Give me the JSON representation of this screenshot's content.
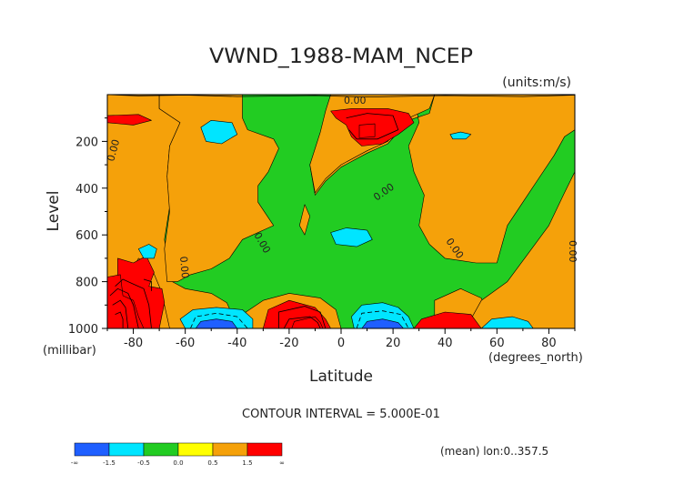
{
  "chart_data": {
    "type": "heatmap",
    "title": "VWND_1988-MAM_NCEP",
    "units": "(units:m/s)",
    "xlabel": "Latitude",
    "ylabel": "Level",
    "x_unit": "(degrees_north)",
    "y_unit": "(millibar)",
    "xlim": [
      -90,
      90
    ],
    "ylim": [
      1000,
      0
    ],
    "x_ticks": [
      -80,
      -60,
      -40,
      -20,
      0,
      20,
      40,
      60,
      80
    ],
    "x_tick_labels": [
      "-80",
      "-60",
      "-40",
      "-20",
      "0",
      "20",
      "40",
      "60",
      "80"
    ],
    "y_ticks": [
      200,
      400,
      600,
      800,
      1000
    ],
    "y_tick_labels": [
      "200",
      "400",
      "600",
      "800",
      "1000"
    ],
    "contour_interval_text": "CONTOUR INTERVAL = 5.000E-01",
    "footnote": "(mean) lon:0..357.5",
    "contour_labels": [
      "0.00",
      "0.00",
      "0.00",
      "0.00",
      "0.00",
      "0.00",
      "0.00"
    ],
    "colorbar": {
      "colors": [
        "#1f5fff",
        "#00e5ff",
        "#22cc22",
        "#ffff00",
        "#f5a10a",
        "#ff0000"
      ],
      "labels": [
        "-∞",
        "-1.5",
        "-0.5",
        "0.0",
        "0.5",
        "1.5",
        "∞"
      ]
    },
    "background_color": "#22cc22",
    "regions": [
      {
        "level": 0.5,
        "pts": [
          [
            -90,
            0
          ],
          [
            -70,
            0
          ],
          [
            -70,
            60
          ],
          [
            -62,
            120
          ],
          [
            -66,
            220
          ],
          [
            -67,
            350
          ],
          [
            -66,
            480
          ],
          [
            -68,
            620
          ],
          [
            -65,
            800
          ],
          [
            -60,
            830
          ],
          [
            -50,
            850
          ],
          [
            -44,
            890
          ],
          [
            -42,
            940
          ],
          [
            -40,
            1000
          ],
          [
            -90,
            1000
          ]
        ]
      },
      {
        "level": 0.5,
        "pts": [
          [
            -70,
            0
          ],
          [
            -38,
            0
          ],
          [
            -38,
            100
          ],
          [
            -36,
            150
          ],
          [
            -26,
            190
          ],
          [
            -24,
            230
          ],
          [
            -28,
            330
          ],
          [
            -32,
            390
          ],
          [
            -32,
            460
          ],
          [
            -26,
            560
          ],
          [
            -38,
            620
          ],
          [
            -43,
            700
          ],
          [
            -50,
            745
          ],
          [
            -58,
            770
          ],
          [
            -63,
            800
          ],
          [
            -67,
            800
          ],
          [
            -68,
            660
          ],
          [
            -66,
            500
          ],
          [
            -67,
            350
          ],
          [
            -66,
            220
          ],
          [
            -62,
            120
          ],
          [
            -70,
            60
          ]
        ]
      },
      {
        "level": 0.5,
        "pts": [
          [
            -16,
            560
          ],
          [
            -14,
            470
          ],
          [
            -12,
            520
          ],
          [
            -14,
            600
          ]
        ]
      },
      {
        "level": 0.5,
        "pts": [
          [
            -4,
            0
          ],
          [
            28,
            0
          ],
          [
            30,
            120
          ],
          [
            26,
            220
          ],
          [
            28,
            330
          ],
          [
            32,
            430
          ],
          [
            30,
            560
          ],
          [
            34,
            640
          ],
          [
            40,
            700
          ],
          [
            52,
            720
          ],
          [
            60,
            720
          ],
          [
            64,
            560
          ],
          [
            70,
            460
          ],
          [
            76,
            360
          ],
          [
            82,
            260
          ],
          [
            86,
            180
          ],
          [
            90,
            150
          ],
          [
            90,
            0
          ],
          [
            36,
            0
          ],
          [
            34,
            80
          ],
          [
            26,
            110
          ],
          [
            18,
            210
          ],
          [
            10,
            250
          ],
          [
            0,
            310
          ],
          [
            -6,
            370
          ],
          [
            -10,
            430
          ],
          [
            -12,
            300
          ],
          [
            -8,
            180
          ],
          [
            -6,
            80
          ]
        ]
      },
      {
        "level": 0.5,
        "pts": [
          [
            -4,
            0
          ],
          [
            36,
            0
          ],
          [
            34,
            60
          ],
          [
            24,
            110
          ],
          [
            18,
            200
          ],
          [
            10,
            240
          ],
          [
            0,
            300
          ],
          [
            -6,
            360
          ],
          [
            -10,
            420
          ],
          [
            -12,
            300
          ],
          [
            -8,
            160
          ],
          [
            -6,
            70
          ]
        ]
      },
      {
        "level": 0.5,
        "pts": [
          [
            36,
            880
          ],
          [
            46,
            830
          ],
          [
            54,
            870
          ],
          [
            56,
            930
          ],
          [
            56,
            1000
          ],
          [
            36,
            1000
          ]
        ]
      },
      {
        "level": 0.5,
        "pts": [
          [
            -38,
            940
          ],
          [
            -30,
            880
          ],
          [
            -20,
            850
          ],
          [
            -8,
            870
          ],
          [
            -2,
            920
          ],
          [
            0,
            1000
          ],
          [
            -38,
            1000
          ]
        ]
      },
      {
        "level": 0.5,
        "pts": [
          [
            48,
            1000
          ],
          [
            54,
            880
          ],
          [
            64,
            800
          ],
          [
            72,
            680
          ],
          [
            80,
            560
          ],
          [
            86,
            420
          ],
          [
            90,
            330
          ],
          [
            90,
            1000
          ]
        ]
      },
      {
        "level": 0.5,
        "pts": [
          [
            -89,
            920
          ],
          [
            -86,
            860
          ],
          [
            -82,
            780
          ],
          [
            -78,
            700
          ],
          [
            -73,
            740
          ],
          [
            -70,
            820
          ],
          [
            -68,
            900
          ],
          [
            -66,
            1000
          ],
          [
            -89,
            1000
          ]
        ]
      },
      {
        "level": 1.5,
        "pts": [
          [
            -86,
            700
          ],
          [
            -80,
            720
          ],
          [
            -75,
            690
          ],
          [
            -72,
            760
          ],
          [
            -74,
            820
          ],
          [
            -69,
            830
          ],
          [
            -68,
            890
          ],
          [
            -70,
            1000
          ],
          [
            -86,
            1000
          ]
        ]
      },
      {
        "level": 1.5,
        "pts": [
          [
            -30,
            1000
          ],
          [
            -28,
            920
          ],
          [
            -20,
            880
          ],
          [
            -10,
            910
          ],
          [
            -6,
            960
          ],
          [
            -4,
            1000
          ]
        ]
      },
      {
        "level": 1.5,
        "pts": [
          [
            -4,
            70
          ],
          [
            4,
            60
          ],
          [
            18,
            60
          ],
          [
            26,
            80
          ],
          [
            28,
            120
          ],
          [
            22,
            170
          ],
          [
            16,
            210
          ],
          [
            8,
            220
          ],
          [
            4,
            180
          ],
          [
            2,
            130
          ],
          [
            -2,
            100
          ]
        ]
      },
      {
        "level": 1.5,
        "pts": [
          [
            28,
            1000
          ],
          [
            31,
            960
          ],
          [
            40,
            930
          ],
          [
            50,
            940
          ],
          [
            54,
            1000
          ]
        ]
      },
      {
        "level": 1.5,
        "pts": [
          [
            -90,
            90
          ],
          [
            -78,
            85
          ],
          [
            -73,
            110
          ],
          [
            -80,
            130
          ],
          [
            -90,
            120
          ]
        ]
      },
      {
        "level": 3.0,
        "pts": [
          [
            7,
            130
          ],
          [
            13,
            125
          ],
          [
            13,
            180
          ],
          [
            7,
            185
          ]
        ]
      },
      {
        "level": 3.0,
        "pts": [
          [
            -90,
            780
          ],
          [
            -85,
            770
          ],
          [
            -84,
            860
          ],
          [
            -80,
            880
          ],
          [
            -78,
            950
          ],
          [
            -76,
            1000
          ],
          [
            -90,
            1000
          ]
        ]
      },
      {
        "level": 3.0,
        "pts": [
          [
            -19,
            1000
          ],
          [
            -18,
            970
          ],
          [
            -10,
            950
          ],
          [
            -8,
            975
          ],
          [
            -7,
            1000
          ]
        ]
      },
      {
        "level": -1.0,
        "pts": [
          [
            -54,
            140
          ],
          [
            -50,
            110
          ],
          [
            -42,
            120
          ],
          [
            -40,
            170
          ],
          [
            -46,
            210
          ],
          [
            -52,
            200
          ]
        ]
      },
      {
        "level": -1.0,
        "pts": [
          [
            -4,
            590
          ],
          [
            2,
            570
          ],
          [
            10,
            580
          ],
          [
            12,
            620
          ],
          [
            6,
            650
          ],
          [
            -2,
            640
          ]
        ]
      },
      {
        "level": -1.0,
        "pts": [
          [
            -60,
            1000
          ],
          [
            -62,
            960
          ],
          [
            -57,
            920
          ],
          [
            -48,
            910
          ],
          [
            -38,
            920
          ],
          [
            -34,
            960
          ],
          [
            -34,
            1000
          ]
        ]
      },
      {
        "level": -1.0,
        "pts": [
          [
            5,
            1000
          ],
          [
            4,
            950
          ],
          [
            8,
            900
          ],
          [
            16,
            890
          ],
          [
            22,
            910
          ],
          [
            26,
            950
          ],
          [
            28,
            1000
          ]
        ]
      },
      {
        "level": -1.0,
        "pts": [
          [
            54,
            1000
          ],
          [
            58,
            960
          ],
          [
            66,
            950
          ],
          [
            72,
            970
          ],
          [
            74,
            1000
          ]
        ]
      },
      {
        "level": -1.0,
        "pts": [
          [
            -78,
            660
          ],
          [
            -74,
            640
          ],
          [
            -71,
            660
          ],
          [
            -72,
            700
          ],
          [
            -76,
            700
          ]
        ]
      },
      {
        "level": -1.0,
        "pts": [
          [
            42,
            170
          ],
          [
            46,
            160
          ],
          [
            50,
            170
          ],
          [
            48,
            190
          ],
          [
            43,
            190
          ]
        ]
      },
      {
        "level": -2.0,
        "pts": [
          [
            -56,
            1000
          ],
          [
            -54,
            970
          ],
          [
            -48,
            960
          ],
          [
            -42,
            970
          ],
          [
            -40,
            1000
          ]
        ]
      },
      {
        "level": -2.0,
        "pts": [
          [
            8,
            1000
          ],
          [
            10,
            970
          ],
          [
            16,
            960
          ],
          [
            22,
            975
          ],
          [
            24,
            1000
          ]
        ]
      }
    ],
    "contour_lines": [
      {
        "style": "dashed",
        "pts": [
          [
            -58,
            1000
          ],
          [
            -56,
            950
          ],
          [
            -48,
            935
          ],
          [
            -40,
            950
          ],
          [
            -36,
            1000
          ]
        ]
      },
      {
        "style": "dashed",
        "pts": [
          [
            6,
            1000
          ],
          [
            8,
            935
          ],
          [
            16,
            925
          ],
          [
            23,
            940
          ],
          [
            26,
            1000
          ]
        ]
      },
      {
        "style": "solid",
        "pts": [
          [
            -24,
            1000
          ],
          [
            -24,
            930
          ],
          [
            -14,
            905
          ],
          [
            -8,
            930
          ],
          [
            -6,
            1000
          ]
        ]
      },
      {
        "style": "solid",
        "pts": [
          [
            -22,
            1000
          ],
          [
            -20,
            960
          ],
          [
            -12,
            950
          ],
          [
            -9,
            975
          ],
          [
            -8,
            1000
          ]
        ]
      },
      {
        "style": "solid",
        "pts": [
          [
            2,
            100
          ],
          [
            10,
            80
          ],
          [
            20,
            90
          ],
          [
            22,
            150
          ],
          [
            14,
            190
          ],
          [
            6,
            190
          ],
          [
            3,
            150
          ]
        ]
      },
      {
        "style": "solid",
        "pts": [
          [
            -87,
            820
          ],
          [
            -84,
            790
          ],
          [
            -80,
            810
          ],
          [
            -76,
            830
          ],
          [
            -74,
            900
          ],
          [
            -73,
            1000
          ]
        ]
      },
      {
        "style": "solid",
        "pts": [
          [
            -89,
            860
          ],
          [
            -86,
            830
          ],
          [
            -82,
            850
          ],
          [
            -80,
            900
          ],
          [
            -78,
            1000
          ]
        ]
      },
      {
        "style": "solid",
        "pts": [
          [
            -88,
            900
          ],
          [
            -85,
            880
          ],
          [
            -83,
            910
          ],
          [
            -82,
            1000
          ]
        ]
      },
      {
        "style": "solid",
        "pts": [
          [
            -87,
            940
          ],
          [
            -85,
            930
          ],
          [
            -84,
            960
          ],
          [
            -84,
            1000
          ]
        ]
      },
      {
        "style": "solid",
        "pts": [
          [
            -76,
            790
          ],
          [
            -73,
            800
          ],
          [
            -73,
            840
          ]
        ]
      },
      {
        "style": "solid",
        "pts": [
          [
            -90,
            0
          ],
          [
            -78,
            5
          ],
          [
            -60,
            2
          ],
          [
            -40,
            8
          ],
          [
            -10,
            4
          ],
          [
            10,
            10
          ],
          [
            40,
            4
          ],
          [
            70,
            8
          ],
          [
            90,
            2
          ]
        ]
      }
    ]
  }
}
